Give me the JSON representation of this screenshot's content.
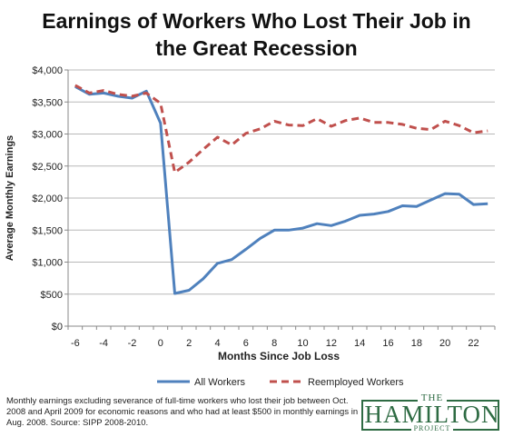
{
  "chart_data": {
    "type": "line",
    "title": [
      "Earnings of Workers Who Lost Their Job in",
      "the Great Recession"
    ],
    "xlabel": "Months Since Job Loss",
    "ylabel": "Average Monthly Earnings",
    "xlim": [
      -6,
      23
    ],
    "ylim": [
      0,
      4000
    ],
    "x_ticks": [
      -6,
      -4,
      -2,
      0,
      2,
      4,
      6,
      8,
      10,
      12,
      14,
      16,
      18,
      20,
      22
    ],
    "y_ticks": [
      0,
      500,
      1000,
      1500,
      2000,
      2500,
      3000,
      3500,
      4000
    ],
    "y_tick_labels": [
      "$0",
      "$500",
      "$1,000",
      "$1,500",
      "$2,000",
      "$2,500",
      "$3,000",
      "$3,500",
      "$4,000"
    ],
    "grid": "horizontal",
    "legend_position": "bottom",
    "x": [
      -6,
      -5,
      -4,
      -3,
      -2,
      -1,
      0,
      1,
      2,
      3,
      4,
      5,
      6,
      7,
      8,
      9,
      10,
      11,
      12,
      13,
      14,
      15,
      16,
      17,
      18,
      19,
      20,
      21,
      22,
      23
    ],
    "series": [
      {
        "name": "All Workers",
        "color": "#4f81bd",
        "style": "solid",
        "values": [
          3740,
          3620,
          3640,
          3590,
          3560,
          3670,
          3170,
          510,
          560,
          740,
          980,
          1040,
          1200,
          1370,
          1500,
          1500,
          1530,
          1600,
          1570,
          1640,
          1730,
          1750,
          1790,
          1880,
          1870,
          1970,
          2070,
          2060,
          1900,
          1910
        ]
      },
      {
        "name": "Reemployed Workers",
        "color": "#c0504d",
        "style": "dashed",
        "values": [
          3760,
          3640,
          3680,
          3620,
          3590,
          3640,
          3480,
          2400,
          2560,
          2760,
          2950,
          2830,
          3010,
          3080,
          3200,
          3140,
          3130,
          3240,
          3120,
          3210,
          3250,
          3180,
          3180,
          3150,
          3090,
          3070,
          3200,
          3130,
          3020,
          3050
        ]
      }
    ]
  },
  "footnote": "Monthly earnings excluding severance of full-time workers who lost their job between Oct. 2008 and April 2009 for economic reasons and who had at least $500 in monthly earnings in Aug. 2008. Source: SIPP 2008-2010.",
  "logo": {
    "top": "THE",
    "main": "HAMILTON",
    "bottom": "PROJECT"
  }
}
